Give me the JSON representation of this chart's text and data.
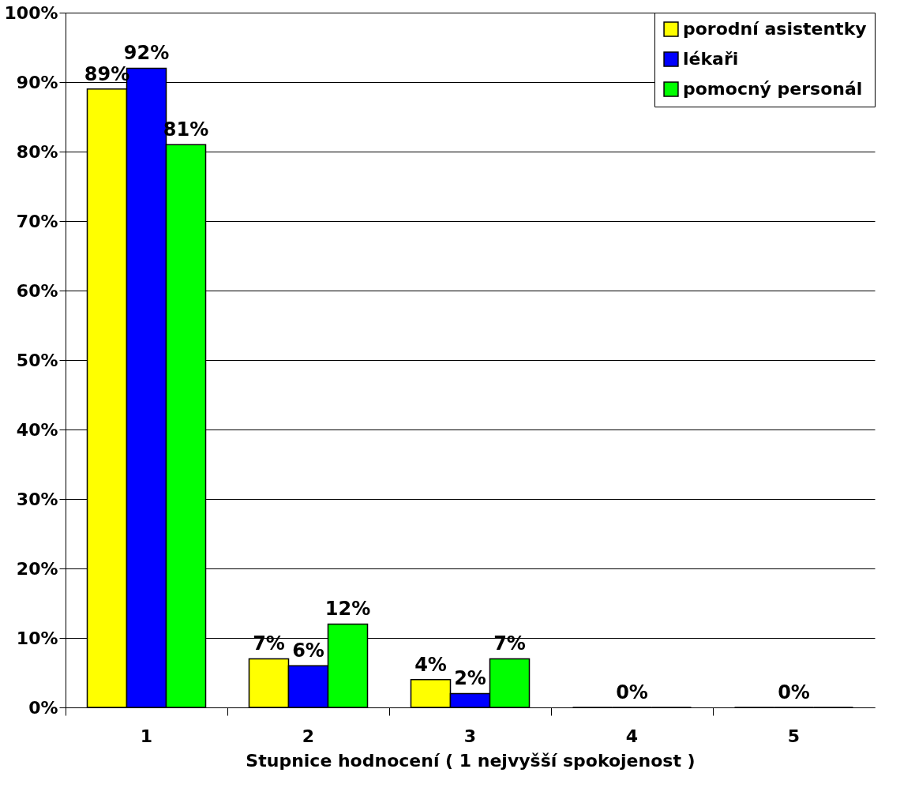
{
  "chart_data": {
    "type": "bar",
    "xlabel": "Stupnice hodnocení ( 1 nejvyšší spokojenost )",
    "categories": [
      "1",
      "2",
      "3",
      "4",
      "5"
    ],
    "series": [
      {
        "name": "porodní asistentky",
        "color": "#ffff00",
        "values": [
          89,
          7,
          4,
          0,
          0
        ],
        "value_labels": [
          "89%",
          "7%",
          "4%",
          null,
          null
        ]
      },
      {
        "name": "lékaři",
        "color": "#0000ff",
        "values": [
          92,
          6,
          2,
          0,
          0
        ],
        "value_labels": [
          "92%",
          "6%",
          "2%",
          "0%",
          "0%"
        ]
      },
      {
        "name": "pomocný personál",
        "color": "#00ff00",
        "values": [
          81,
          12,
          7,
          0,
          0
        ],
        "value_labels": [
          "81%",
          "12%",
          "7%",
          null,
          null
        ]
      }
    ],
    "ylim": [
      0,
      100
    ],
    "yticks": [
      {
        "value": 0,
        "label": "0%"
      },
      {
        "value": 10,
        "label": "10%"
      },
      {
        "value": 20,
        "label": "20%"
      },
      {
        "value": 30,
        "label": "30%"
      },
      {
        "value": 40,
        "label": "40%"
      },
      {
        "value": 50,
        "label": "50%"
      },
      {
        "value": 60,
        "label": "60%"
      },
      {
        "value": 70,
        "label": "70%"
      },
      {
        "value": 80,
        "label": "80%"
      },
      {
        "value": 90,
        "label": "90%"
      },
      {
        "value": 100,
        "label": "100%"
      }
    ],
    "grid": "y",
    "legend": "top right"
  }
}
